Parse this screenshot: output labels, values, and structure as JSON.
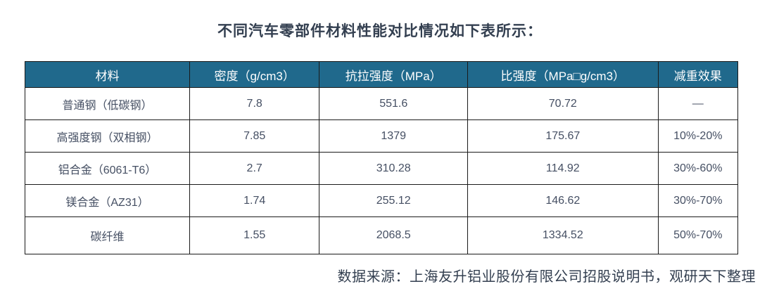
{
  "page": {
    "title": "不同汽车零部件材料性能对比情况如下表所示：",
    "source_note": "数据来源：上海友升铝业股份有限公司招股说明书，观研天下整理"
  },
  "colors": {
    "header_bg": "#20698C",
    "header_text": "#FFFFFF",
    "title_text": "#333F50",
    "body_text": "#454F63",
    "border": "#1A1A1A"
  },
  "table": {
    "columns": [
      "材料",
      "密度（g/cm3）",
      "抗拉强度（MPa）",
      "比强度（MPa□g/cm3）",
      "减重效果"
    ],
    "rows": [
      [
        "普通钢（低碳钢）",
        "7.8",
        "551.6",
        "70.72",
        "—"
      ],
      [
        "高强度钢（双相钢）",
        "7.85",
        "1379",
        "175.67",
        "10%-20%"
      ],
      [
        "铝合金（6061-T6）",
        "2.7",
        "310.28",
        "114.92",
        "30%-60%"
      ],
      [
        "镁合金（AZ31）",
        "1.74",
        "255.12",
        "146.62",
        "30%-70%"
      ],
      [
        "碳纤维",
        "1.55",
        "2068.5",
        "1334.52",
        "50%-70%"
      ]
    ]
  }
}
